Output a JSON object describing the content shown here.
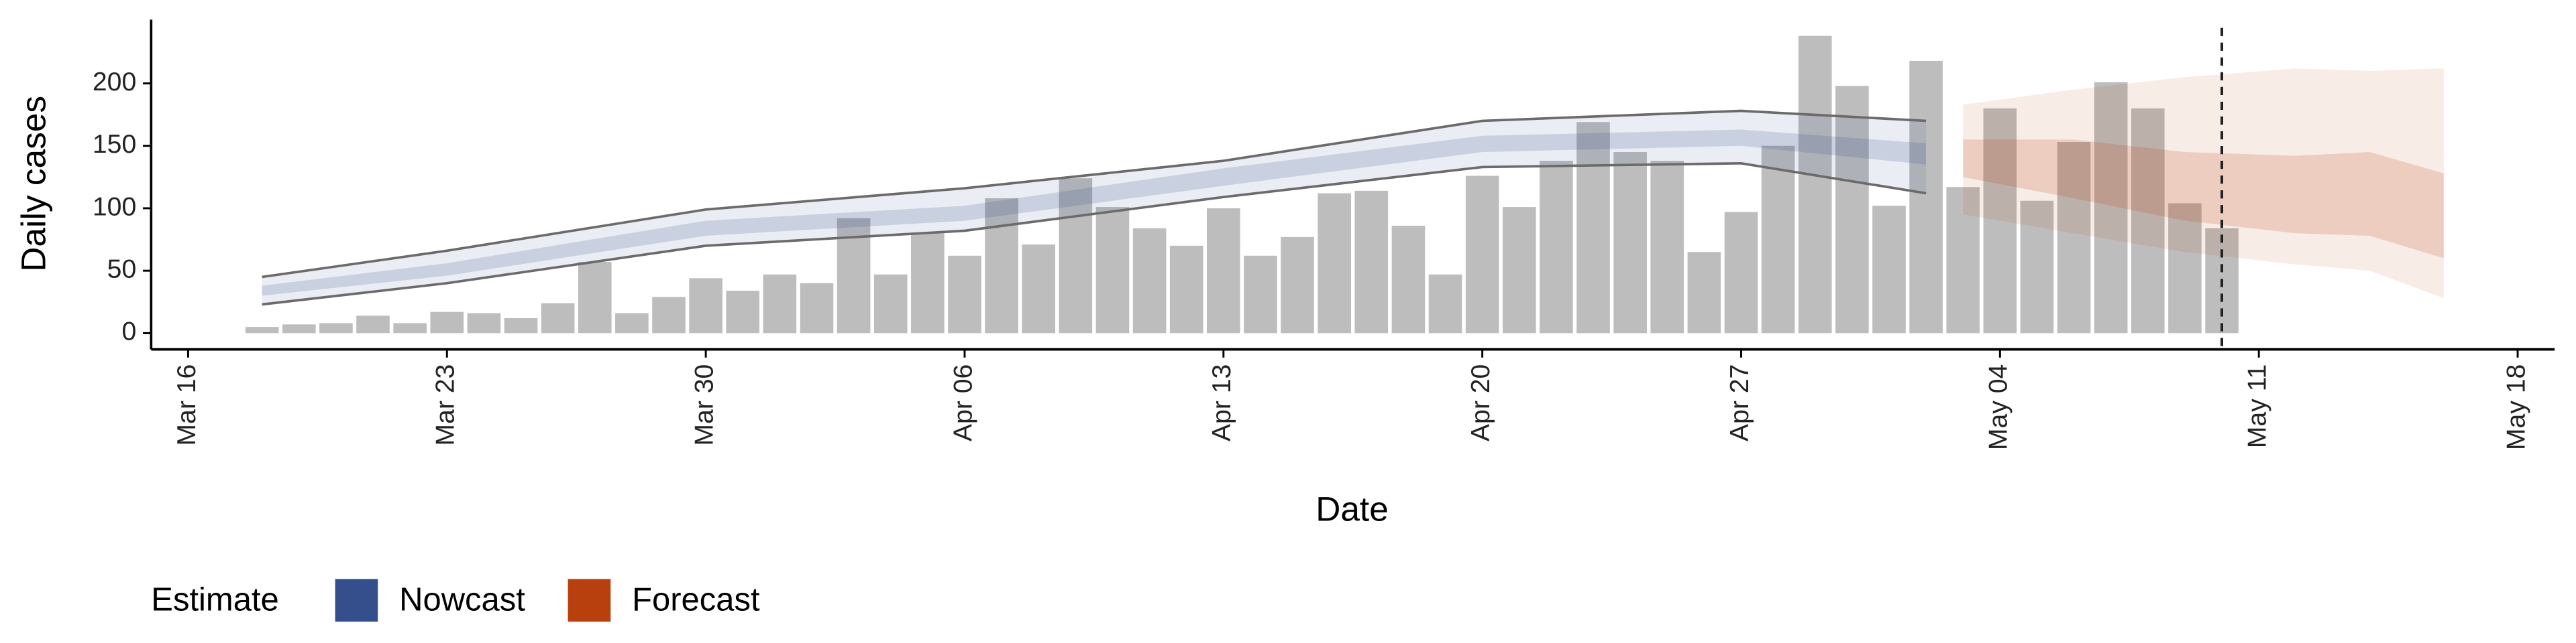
{
  "chart_data": {
    "type": "bar",
    "x_label": "Date",
    "y_label": "Daily cases",
    "legend_title": "Estimate",
    "bars": {
      "color": "#bdbdbd",
      "x": [
        "Mar 18",
        "Mar 19",
        "Mar 20",
        "Mar 21",
        "Mar 22",
        "Mar 23",
        "Mar 24",
        "Mar 25",
        "Mar 26",
        "Mar 27",
        "Mar 28",
        "Mar 29",
        "Mar 30",
        "Mar 31",
        "Apr 1",
        "Apr 2",
        "Apr 3",
        "Apr 4",
        "Apr 5",
        "Apr 6",
        "Apr 7",
        "Apr 8",
        "Apr 9",
        "Apr 10",
        "Apr 11",
        "Apr 12",
        "Apr 13",
        "Apr 14",
        "Apr 15",
        "Apr 16",
        "Apr 17",
        "Apr 18",
        "Apr 19",
        "Apr 20",
        "Apr 21",
        "Apr 22",
        "Apr 23",
        "Apr 24",
        "Apr 25",
        "Apr 26",
        "Apr 27",
        "Apr 28",
        "Apr 29",
        "Apr 30",
        "May 1",
        "May 2",
        "May 3",
        "May 4",
        "May 5",
        "May 6",
        "May 7",
        "May 8",
        "May 9",
        "May 10"
      ],
      "values": [
        5,
        7,
        8,
        14,
        8,
        17,
        16,
        12,
        24,
        57,
        16,
        29,
        44,
        34,
        47,
        40,
        92,
        47,
        80,
        62,
        108,
        71,
        124,
        101,
        84,
        70,
        100,
        62,
        77,
        112,
        114,
        86,
        47,
        126,
        101,
        138,
        169,
        145,
        138,
        65,
        97,
        150,
        238,
        198,
        102,
        218,
        117,
        180,
        106,
        153,
        201,
        180,
        104,
        84
      ]
    },
    "series": [
      {
        "name": "Nowcast",
        "color": "#354e8c",
        "x": [
          "Mar 18",
          "Mar 23",
          "Mar 30",
          "Apr 6",
          "Apr 13",
          "Apr 20",
          "Apr 27",
          "May 2"
        ],
        "lower": [
          23,
          40,
          70,
          82,
          109,
          133,
          136,
          112
        ],
        "upper": [
          45,
          66,
          99,
          116,
          138,
          170,
          178,
          170
        ],
        "lower50": [
          30,
          46,
          78,
          90,
          118,
          145,
          150,
          135
        ],
        "upper50": [
          38,
          56,
          90,
          102,
          132,
          158,
          163,
          152
        ]
      },
      {
        "name": "Forecast",
        "color": "#b8400e",
        "x": [
          "May 3",
          "May 6",
          "May 9",
          "May 12",
          "May 14",
          "May 16"
        ],
        "lower": [
          95,
          80,
          65,
          55,
          50,
          28
        ],
        "upper": [
          183,
          195,
          205,
          212,
          210,
          212
        ],
        "lower50": [
          125,
          108,
          90,
          80,
          78,
          60
        ],
        "upper50": [
          155,
          155,
          145,
          142,
          145,
          128
        ]
      }
    ],
    "vline": "May 10",
    "xlim": [
      "Mar 15",
      "May 19"
    ],
    "xticks": [
      "Mar 16",
      "Mar 23",
      "Mar 30",
      "Apr 06",
      "Apr 13",
      "Apr 20",
      "Apr 27",
      "May 04",
      "May 11",
      "May 18"
    ],
    "ylim": [
      -13,
      251
    ],
    "yticks": [
      0,
      50,
      100,
      150,
      200
    ]
  }
}
